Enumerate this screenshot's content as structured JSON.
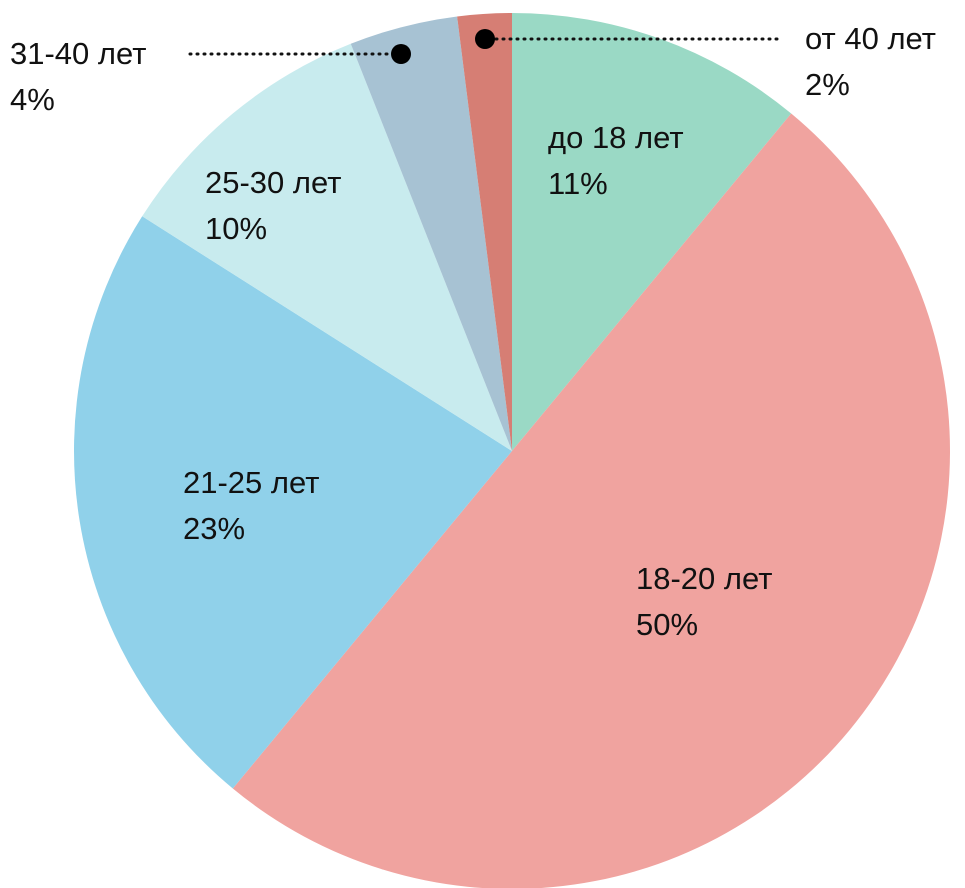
{
  "chart_data": {
    "type": "pie",
    "slices": [
      {
        "label": "до 18 лет",
        "percent_label": "11%",
        "value": 11,
        "color": "#9ad9c5"
      },
      {
        "label": "18-20 лет",
        "percent_label": "50%",
        "value": 50,
        "color": "#f0a39f"
      },
      {
        "label": "21-25 лет",
        "percent_label": "23%",
        "value": 23,
        "color": "#90d1ea"
      },
      {
        "label": "25-30 лет",
        "percent_label": "10%",
        "value": 10,
        "color": "#c8ebee"
      },
      {
        "label": "31-40 лет",
        "percent_label": "4%",
        "value": 4,
        "color": "#a7c2d3"
      },
      {
        "label": "от 40 лет",
        "percent_label": "2%",
        "value": 2,
        "color": "#d67e74"
      }
    ],
    "start": "top",
    "direction": "clockwise",
    "legend": "none"
  }
}
